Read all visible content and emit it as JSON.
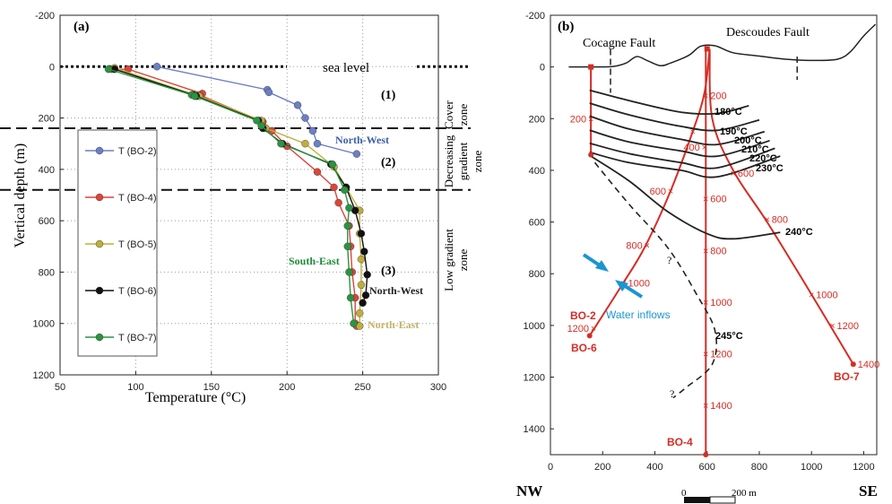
{
  "panel_a": {
    "label": "(a)",
    "sea_level": "sea level",
    "zones": [
      {
        "num": "(1)",
        "name_lines": [
          "Cover",
          "zone"
        ]
      },
      {
        "num": "(2)",
        "name_lines": [
          "Decreasing",
          "gradient",
          "zone"
        ]
      },
      {
        "num": "(3)",
        "name_lines": [
          "Low gradient",
          "zone"
        ]
      }
    ],
    "annotations": [
      {
        "text": "North-West",
        "color": "#3a5fa8"
      },
      {
        "text": "South-East",
        "color": "#1f8a3a"
      },
      {
        "text": "North-West",
        "color": "#222222"
      },
      {
        "text": "North-East",
        "color": "#c2b36a"
      }
    ]
  },
  "panel_b": {
    "label": "(b)",
    "faults": [
      "Cocagne Fault",
      "Descoudes Fault"
    ],
    "wells": [
      "BO-2",
      "BO-4",
      "BO-6",
      "BO-7"
    ],
    "well_color": "#d62d24",
    "isotherms": [
      "180°C",
      "190°C",
      "200°C",
      "210°C",
      "220°C",
      "230°C",
      "240°C",
      "245°C"
    ],
    "water_inflows": "Water inflows",
    "inflow_color": "#1a95d3",
    "question_mark": "?",
    "md_labels": {
      "bo2": [
        "200"
      ],
      "bo4": [
        "200",
        "400",
        "600",
        "800",
        "1000",
        "1200",
        "1400"
      ],
      "bo6": [
        "400",
        "600",
        "800",
        "1000",
        "1200"
      ],
      "bo7": [
        "600",
        "800",
        "1000",
        "1200",
        "1400"
      ]
    },
    "direction_left": "NW",
    "direction_right": "SE",
    "scale_bar": {
      "start": "0",
      "end": "200 m"
    }
  },
  "chart_data": [
    {
      "type": "line",
      "xlabel": "Temperature (°C)",
      "ylabel": "Vertical depth (m)",
      "xlim": [
        50,
        300
      ],
      "ylim": [
        1200,
        -200
      ],
      "y_inverted": true,
      "xticks": [
        50,
        100,
        150,
        200,
        250,
        300
      ],
      "yticks": [
        -200,
        0,
        200,
        400,
        600,
        800,
        1000,
        1200
      ],
      "grid": "dotted",
      "legend_position": "left",
      "zone_boundaries": [
        0,
        240,
        480
      ],
      "series": [
        {
          "name": "T (BO-2)",
          "color": "#6d7fc4",
          "points": [
            [
              114,
              0
            ],
            [
              187,
              90
            ],
            [
              188,
              100
            ],
            [
              207,
              150
            ],
            [
              212,
              200
            ],
            [
              217,
              250
            ],
            [
              220,
              300
            ],
            [
              246,
              340
            ]
          ]
        },
        {
          "name": "T (BO-4)",
          "color": "#d9463b",
          "points": [
            [
              84,
              10
            ],
            [
              95,
              10
            ],
            [
              144,
              105
            ],
            [
              142,
              110
            ],
            [
              184,
              215
            ],
            [
              190,
              250
            ],
            [
              200,
              310
            ],
            [
              220,
              410
            ],
            [
              231,
              470
            ],
            [
              234,
              530
            ],
            [
              241,
              620
            ],
            [
              242,
              700
            ],
            [
              243,
              800
            ],
            [
              245,
              900
            ],
            [
              245,
              1000
            ],
            [
              246,
              1010
            ]
          ]
        },
        {
          "name": "T (BO-5)",
          "color": "#bfae3c",
          "points": [
            [
              86,
              5
            ],
            [
              139,
              110
            ],
            [
              142,
              115
            ],
            [
              183,
              210
            ],
            [
              186,
              240
            ],
            [
              212,
              300
            ],
            [
              231,
              390
            ],
            [
              239,
              470
            ],
            [
              248,
              560
            ],
            [
              248,
              650
            ],
            [
              249,
              750
            ],
            [
              249,
              850
            ],
            [
              248,
              960
            ],
            [
              248,
              1010
            ]
          ]
        },
        {
          "name": "T (BO-6)",
          "color": "#111111",
          "points": [
            [
              86,
              10
            ],
            [
              138,
              110
            ],
            [
              140,
              115
            ],
            [
              181,
              210
            ],
            [
              184,
              240
            ],
            [
              197,
              300
            ],
            [
              229,
              380
            ],
            [
              239,
              470
            ],
            [
              245,
              560
            ],
            [
              249,
              650
            ],
            [
              251,
              720
            ],
            [
              253,
              810
            ],
            [
              252,
              890
            ],
            [
              250,
              920
            ]
          ]
        },
        {
          "name": "T (BO-7)",
          "color": "#2a9440",
          "points": [
            [
              82,
              10
            ],
            [
              137,
              110
            ],
            [
              139,
              115
            ],
            [
              180,
              210
            ],
            [
              183,
              230
            ],
            [
              196,
              300
            ],
            [
              230,
              380
            ],
            [
              238,
              480
            ],
            [
              241,
              550
            ],
            [
              240,
              620
            ],
            [
              240,
              700
            ],
            [
              241,
              800
            ],
            [
              242,
              900
            ],
            [
              244,
              1000
            ]
          ]
        }
      ]
    },
    {
      "type": "line",
      "xlim": [
        0,
        1250
      ],
      "ylim": [
        1500,
        -200
      ],
      "y_inverted": true,
      "xticks": [
        0,
        200,
        400,
        600,
        800,
        1000,
        1200
      ],
      "yticks": [
        -200,
        0,
        200,
        400,
        600,
        800,
        1000,
        1200,
        1400
      ],
      "series": [
        {
          "name": "topography",
          "points": [
            [
              70,
              0
            ],
            [
              170,
              0
            ],
            [
              240,
              -2
            ],
            [
              290,
              -15
            ],
            [
              330,
              -40
            ],
            [
              370,
              -25
            ],
            [
              420,
              -5
            ],
            [
              460,
              -15
            ],
            [
              530,
              -45
            ],
            [
              575,
              -80
            ],
            [
              630,
              -82
            ],
            [
              700,
              -55
            ],
            [
              800,
              -42
            ],
            [
              900,
              -30
            ],
            [
              1000,
              -25
            ],
            [
              1100,
              -30
            ],
            [
              1150,
              -60
            ],
            [
              1200,
              -120
            ],
            [
              1245,
              -165
            ]
          ]
        },
        {
          "name": "Cocagne Fault",
          "points": [
            [
              230,
              -70
            ],
            [
              230,
              100
            ]
          ]
        },
        {
          "name": "Descoudes Fault",
          "points": [
            [
              945,
              -40
            ],
            [
              945,
              50
            ]
          ]
        },
        {
          "name": "BO-2",
          "points": [
            [
              155,
              0
            ],
            [
              155,
              340
            ]
          ]
        },
        {
          "name": "BO-4",
          "points": [
            [
              595,
              -70
            ],
            [
              595,
              1500
            ]
          ]
        },
        {
          "name": "BO-6",
          "points": [
            [
              610,
              -70
            ],
            [
              590,
              100
            ],
            [
              545,
              250
            ],
            [
              460,
              480
            ],
            [
              360,
              700
            ],
            [
              270,
              850
            ],
            [
              150,
              1040
            ]
          ]
        },
        {
          "name": "BO-7",
          "points": [
            [
              610,
              -70
            ],
            [
              620,
              200
            ],
            [
              700,
              400
            ],
            [
              830,
              600
            ],
            [
              1000,
              880
            ],
            [
              1160,
              1150
            ]
          ]
        },
        {
          "name": "180°C",
          "points": [
            [
              150,
              90
            ],
            [
              300,
              130
            ],
            [
              500,
              175
            ],
            [
              640,
              180
            ],
            [
              760,
              150
            ]
          ]
        },
        {
          "name": "190°C",
          "points": [
            [
              150,
              140
            ],
            [
              300,
              185
            ],
            [
              500,
              230
            ],
            [
              640,
              245
            ],
            [
              800,
              205
            ]
          ]
        },
        {
          "name": "200°C",
          "points": [
            [
              150,
              190
            ],
            [
              300,
              240
            ],
            [
              500,
              280
            ],
            [
              640,
              300
            ],
            [
              820,
              250
            ]
          ]
        },
        {
          "name": "210°C",
          "points": [
            [
              150,
              245
            ],
            [
              300,
              290
            ],
            [
              500,
              325
            ],
            [
              640,
              345
            ],
            [
              840,
              285
            ]
          ]
        },
        {
          "name": "220°C",
          "points": [
            [
              150,
              295
            ],
            [
              300,
              335
            ],
            [
              500,
              370
            ],
            [
              640,
              390
            ],
            [
              860,
              315
            ]
          ]
        },
        {
          "name": "230°C",
          "points": [
            [
              150,
              330
            ],
            [
              300,
              370
            ],
            [
              500,
              400
            ],
            [
              640,
              425
            ],
            [
              880,
              345
            ]
          ]
        },
        {
          "name": "240°C",
          "points": [
            [
              155,
              345
            ],
            [
              300,
              440
            ],
            [
              450,
              560
            ],
            [
              600,
              645
            ],
            [
              700,
              665
            ],
            [
              880,
              640
            ]
          ]
        },
        {
          "name": "245°C",
          "points": [
            [
              170,
              370
            ],
            [
              300,
              530
            ],
            [
              450,
              700
            ],
            [
              560,
              880
            ],
            [
              630,
              1020
            ],
            [
              620,
              1150
            ],
            [
              520,
              1240
            ],
            [
              470,
              1280
            ]
          ]
        }
      ]
    }
  ]
}
